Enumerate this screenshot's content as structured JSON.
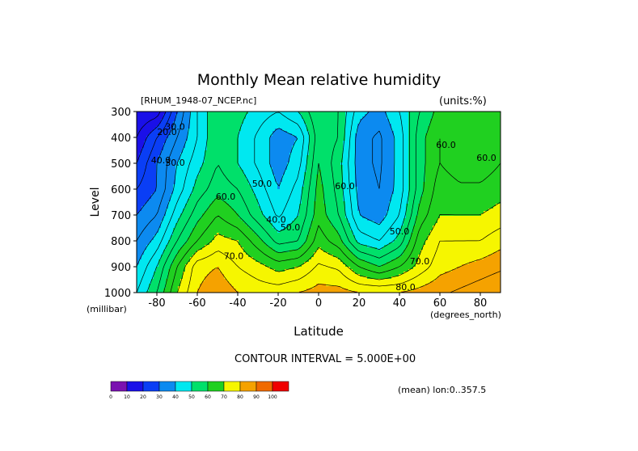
{
  "chart_data": {
    "type": "heatmap",
    "title": "Monthly Mean relative humidity",
    "source": "[RHUM_1948-07_NCEP.nc]",
    "units": "(units:%)",
    "ylabel": "Level",
    "yunit": "(millibar)",
    "xlabel": "Latitude",
    "xunit": "(degrees_north)",
    "contour_interval": "CONTOUR INTERVAL = 5.000E+00",
    "mean_note": "(mean) lon:0..357.5",
    "xlim": [
      -90,
      90
    ],
    "ylim": [
      1000,
      300
    ],
    "x_ticks": [
      "-80",
      "-60",
      "-40",
      "-20",
      "0",
      "20",
      "40",
      "60",
      "80"
    ],
    "y_ticks": [
      "300",
      "400",
      "500",
      "600",
      "700",
      "800",
      "900",
      "1000"
    ],
    "x_tick_values": [
      -80,
      -60,
      -40,
      -20,
      0,
      20,
      40,
      60,
      80
    ],
    "y_tick_values": [
      300,
      400,
      500,
      600,
      700,
      800,
      900,
      1000
    ],
    "color_levels": [
      0,
      10,
      20,
      30,
      40,
      50,
      60,
      70,
      80,
      90,
      100
    ],
    "colorbar_labels": [
      "0",
      "10",
      "20",
      "30",
      "40",
      "50",
      "60",
      "70",
      "80",
      "90",
      "100"
    ],
    "colors": [
      "#7a12b0",
      "#1a10e8",
      "#0a3ef5",
      "#0c8af0",
      "#00e8f0",
      "#00e06a",
      "#20d020",
      "#f6f600",
      "#f5a200",
      "#f06a00",
      "#f00000"
    ],
    "contour_labels": [
      {
        "text": "20.0",
        "lat": -75,
        "lev": 390
      },
      {
        "text": "30.0",
        "lat": -71,
        "lev": 370
      },
      {
        "text": "40.0",
        "lat": -78,
        "lev": 500
      },
      {
        "text": "30.0",
        "lat": -71,
        "lev": 510
      },
      {
        "text": "60.0",
        "lat": -46,
        "lev": 640
      },
      {
        "text": "70.0",
        "lat": -42,
        "lev": 870
      },
      {
        "text": "40.0",
        "lat": -21,
        "lev": 730
      },
      {
        "text": "50.0",
        "lat": -14,
        "lev": 760
      },
      {
        "text": "50.0",
        "lat": -28,
        "lev": 590
      },
      {
        "text": "60.0",
        "lat": 13,
        "lev": 600
      },
      {
        "text": "50.0",
        "lat": 40,
        "lev": 775
      },
      {
        "text": "70.0",
        "lat": 50,
        "lev": 890
      },
      {
        "text": "60.0",
        "lat": 63,
        "lev": 440
      },
      {
        "text": "60.0",
        "lat": 83,
        "lev": 490
      },
      {
        "text": "80.0",
        "lat": 43,
        "lev": 990
      }
    ],
    "grid_lat": [
      -90,
      -80,
      -70,
      -60,
      -50,
      -40,
      -30,
      -20,
      -10,
      0,
      10,
      20,
      30,
      40,
      50,
      60,
      70,
      80,
      90
    ],
    "grid_lev": [
      300,
      400,
      500,
      600,
      700,
      800,
      900,
      1000
    ],
    "values": [
      [
        10,
        12,
        30,
        45,
        55,
        52,
        48,
        45,
        50,
        60,
        55,
        42,
        38,
        45,
        55,
        62,
        62,
        62,
        62
      ],
      [
        15,
        25,
        35,
        45,
        55,
        50,
        44,
        37,
        40,
        58,
        55,
        37,
        34,
        42,
        58,
        65,
        62,
        60,
        62
      ],
      [
        20,
        30,
        40,
        48,
        55,
        50,
        44,
        37,
        43,
        60,
        52,
        37,
        34,
        42,
        58,
        65,
        62,
        62,
        65
      ],
      [
        25,
        30,
        42,
        52,
        58,
        55,
        48,
        40,
        47,
        62,
        53,
        38,
        35,
        42,
        58,
        68,
        66,
        66,
        68
      ],
      [
        30,
        35,
        48,
        58,
        65,
        60,
        52,
        44,
        50,
        63,
        55,
        40,
        37,
        45,
        62,
        70,
        70,
        70,
        72
      ],
      [
        35,
        42,
        55,
        65,
        72,
        70,
        62,
        53,
        55,
        68,
        62,
        48,
        45,
        52,
        68,
        75,
        75,
        75,
        78
      ],
      [
        40,
        50,
        65,
        78,
        80,
        75,
        72,
        68,
        70,
        76,
        74,
        65,
        60,
        65,
        72,
        78,
        80,
        82,
        84
      ],
      [
        45,
        55,
        70,
        80,
        84,
        80,
        78,
        78,
        80,
        82,
        82,
        80,
        80,
        80,
        82,
        84,
        86,
        88,
        90
      ]
    ]
  }
}
